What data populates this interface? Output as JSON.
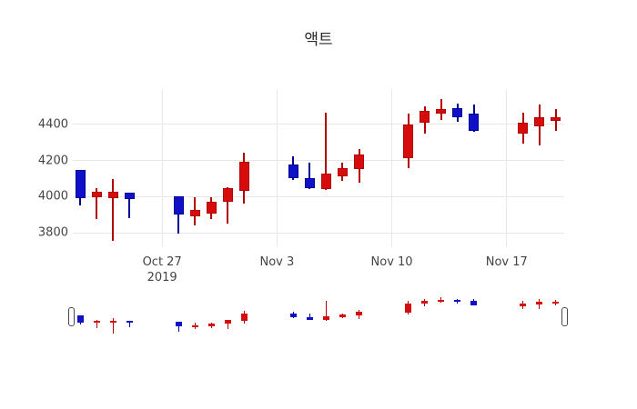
{
  "chart_data": {
    "type": "candlestick",
    "title": "액트",
    "x": [
      "2019-10-22",
      "2019-10-23",
      "2019-10-24",
      "2019-10-25",
      "2019-10-28",
      "2019-10-29",
      "2019-10-30",
      "2019-10-31",
      "2019-11-01",
      "2019-11-04",
      "2019-11-05",
      "2019-11-06",
      "2019-11-07",
      "2019-11-08",
      "2019-11-11",
      "2019-11-12",
      "2019-11-13",
      "2019-11-14",
      "2019-11-15",
      "2019-11-18",
      "2019-11-19",
      "2019-11-20"
    ],
    "open": [
      4145,
      3995,
      3990,
      4020,
      4000,
      3890,
      3905,
      3970,
      4030,
      4180,
      4100,
      4040,
      4110,
      4150,
      4215,
      4410,
      4460,
      4490,
      4460,
      4350,
      4390,
      4420
    ],
    "high": [
      4145,
      4045,
      4095,
      4020,
      4000,
      3995,
      3995,
      4050,
      4245,
      4225,
      4190,
      4465,
      4190,
      4265,
      4460,
      4500,
      4540,
      4515,
      4510,
      4465,
      4510,
      4485
    ],
    "low": [
      3950,
      3875,
      3755,
      3880,
      3795,
      3840,
      3875,
      3850,
      3960,
      4090,
      4040,
      4035,
      4085,
      4075,
      4160,
      4350,
      4425,
      4415,
      4360,
      4295,
      4285,
      4365
    ],
    "close": [
      3990,
      4025,
      4025,
      3985,
      3900,
      3925,
      3970,
      4045,
      4195,
      4100,
      4045,
      4125,
      4160,
      4235,
      4400,
      4475,
      4485,
      4440,
      4365,
      4410,
      4440,
      4440
    ],
    "increasing_color": "#d60b0b",
    "increasing_line_color": "#b30000",
    "decreasing_color": "#1010c8",
    "decreasing_line_color": "#000095",
    "yticks": [
      3800,
      4000,
      4200,
      4400
    ],
    "xticks": [
      {
        "date": "2019-10-27",
        "label": "Oct 27",
        "sublabel": "2019"
      },
      {
        "date": "2019-11-03",
        "label": "Nov 3",
        "sublabel": ""
      },
      {
        "date": "2019-11-10",
        "label": "Nov 10",
        "sublabel": ""
      },
      {
        "date": "2019-11-17",
        "label": "Nov 17",
        "sublabel": ""
      }
    ],
    "ylim": [
      3720,
      4595
    ],
    "grid": true,
    "legend": false,
    "rangeslider": true
  }
}
